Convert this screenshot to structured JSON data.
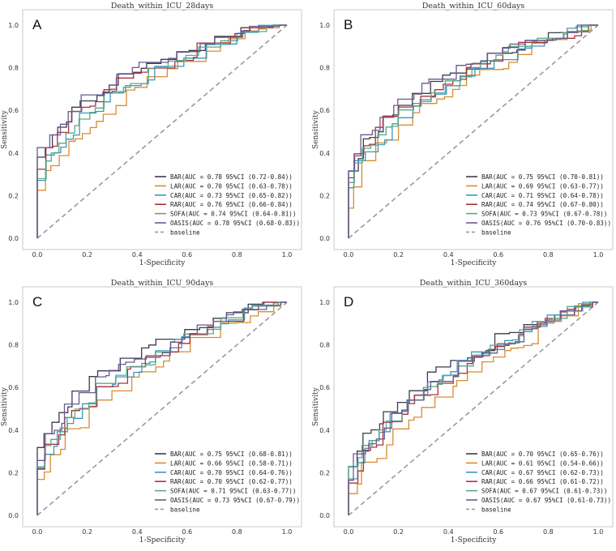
{
  "chart_data": [
    {
      "type": "line",
      "letter": "A",
      "title": "Death_within_ICU_28days",
      "xlabel": "1-Specificity",
      "ylabel": "Sensitivity",
      "xlim": [
        0,
        1
      ],
      "ylim": [
        0,
        1
      ],
      "xticks": [
        "0.0",
        "0.2",
        "0.4",
        "0.6",
        "0.8",
        "1.0"
      ],
      "yticks": [
        "0.0",
        "0.2",
        "0.4",
        "0.6",
        "0.8",
        "1.0"
      ],
      "baseline_label": "baseline",
      "series": [
        {
          "name": "BAR",
          "legend": "BAR(AUC = 0.78 95%CI (0.72-0.84))",
          "color": "#3b3b4f",
          "auc": 0.78
        },
        {
          "name": "LAR",
          "legend": "LAR(AUC = 0.70 95%CI (0.63-0.78))",
          "color": "#d98c2e",
          "auc": 0.7
        },
        {
          "name": "CAR",
          "legend": "CAR(AUC = 0.73 95%CI (0.65-0.82))",
          "color": "#3d97be",
          "auc": 0.73
        },
        {
          "name": "RAR",
          "legend": "RAR(AUC = 0.76 95%CI (0.66-0.84))",
          "color": "#a8333b",
          "auc": 0.76
        },
        {
          "name": "SOFA",
          "legend": "SOFA(AUC = 0.74 95%CI (0.64-0.81))",
          "color": "#5aa98a",
          "auc": 0.74
        },
        {
          "name": "OASIS",
          "legend": "OASIS(AUC = 0.78 95%CI (0.68-0.83))",
          "color": "#6a5a92",
          "auc": 0.78
        }
      ]
    },
    {
      "type": "line",
      "letter": "B",
      "title": "Death_within_ICU_60days",
      "xlabel": "1-Specificity",
      "ylabel": "Sensitivity",
      "xlim": [
        0,
        1
      ],
      "ylim": [
        0,
        1
      ],
      "xticks": [
        "0.0",
        "0.2",
        "0.4",
        "0.6",
        "0.8",
        "1.0"
      ],
      "yticks": [
        "0.0",
        "0.2",
        "0.4",
        "0.6",
        "0.8",
        "1.0"
      ],
      "baseline_label": "baseline",
      "series": [
        {
          "name": "BAR",
          "legend": "BAR(AUC = 0.75 95%CI (0.70-0.81))",
          "color": "#3b3b4f",
          "auc": 0.75
        },
        {
          "name": "LAR",
          "legend": "LAR(AUC = 0.69 95%CI (0.63-0.77))",
          "color": "#d98c2e",
          "auc": 0.69
        },
        {
          "name": "CAR",
          "legend": "CAR(AUC = 0.71 95%CI (0.64-0.78))",
          "color": "#3d97be",
          "auc": 0.71
        },
        {
          "name": "RAR",
          "legend": "RAR(AUC = 0.74 95%CI (0.67-0.80))",
          "color": "#a8333b",
          "auc": 0.74
        },
        {
          "name": "SOFA",
          "legend": "SOFA(AUC = 0.73 95%CI (0.67-0.78))",
          "color": "#5aa98a",
          "auc": 0.73
        },
        {
          "name": "OASIS",
          "legend": "OASIS(AUC = 0.76 95%CI (0.70-0.83))",
          "color": "#6a5a92",
          "auc": 0.76
        }
      ]
    },
    {
      "type": "line",
      "letter": "C",
      "title": "Death_within_ICU_90days",
      "xlabel": "1-Specificity",
      "ylabel": "Sensitivity",
      "xlim": [
        0,
        1
      ],
      "ylim": [
        0,
        1
      ],
      "xticks": [
        "0.0",
        "0.2",
        "0.4",
        "0.6",
        "0.8",
        "1.0"
      ],
      "yticks": [
        "0.0",
        "0.2",
        "0.4",
        "0.6",
        "0.8",
        "1.0"
      ],
      "baseline_label": "baseline",
      "series": [
        {
          "name": "BAR",
          "legend": "BAR(AUC = 0.75 95%CI (0.68-0.81))",
          "color": "#3b3b4f",
          "auc": 0.75
        },
        {
          "name": "LAR",
          "legend": "LAR(AUC = 0.66 95%CI (0.58-0.71))",
          "color": "#d98c2e",
          "auc": 0.66
        },
        {
          "name": "CAR",
          "legend": "CAR(AUC = 0.70 95%CI (0.64-0.76))",
          "color": "#3d97be",
          "auc": 0.7
        },
        {
          "name": "RAR",
          "legend": "RAR(AUC = 0.70 95%CI (0.62-0.77))",
          "color": "#a8333b",
          "auc": 0.7
        },
        {
          "name": "SOFA",
          "legend": "SOFA(AUC = 0.71 95%CI (0.63-0.77))",
          "color": "#5aa98a",
          "auc": 0.71
        },
        {
          "name": "OASIS",
          "legend": "OASIS(AUC = 0.73 95%CI (0.67-0.79))",
          "color": "#6a5a92",
          "auc": 0.73
        }
      ]
    },
    {
      "type": "line",
      "letter": "D",
      "title": "Death_within_ICU_360days",
      "xlabel": "1-Specificity",
      "ylabel": "Sensitivity",
      "xlim": [
        0,
        1
      ],
      "ylim": [
        0,
        1
      ],
      "xticks": [
        "0.0",
        "0.2",
        "0.4",
        "0.6",
        "0.8",
        "1.0"
      ],
      "yticks": [
        "0.0",
        "0.2",
        "0.4",
        "0.6",
        "0.8",
        "1.0"
      ],
      "baseline_label": "baseline",
      "series": [
        {
          "name": "BAR",
          "legend": "BAR(AUC = 0.70 95%CI (0.65-0.76))",
          "color": "#3b3b4f",
          "auc": 0.7
        },
        {
          "name": "LAR",
          "legend": "LAR(AUC = 0.61 95%CI (0.54-0.66))",
          "color": "#d98c2e",
          "auc": 0.61
        },
        {
          "name": "CAR",
          "legend": "CAR(AUC = 0.67 95%CI (0.62-0.73))",
          "color": "#3d97be",
          "auc": 0.67
        },
        {
          "name": "RAR",
          "legend": "RAR(AUC = 0.66 95%CI (0.61-0.72))",
          "color": "#a8333b",
          "auc": 0.66
        },
        {
          "name": "SOFA",
          "legend": "SOFA(AUC = 0.67 95%CI (0.61-0.73))",
          "color": "#5aa98a",
          "auc": 0.67
        },
        {
          "name": "OASIS",
          "legend": "OASIS(AUC = 0.67 95%CI (0.61-0.73))",
          "color": "#6a5a92",
          "auc": 0.67
        }
      ]
    }
  ]
}
